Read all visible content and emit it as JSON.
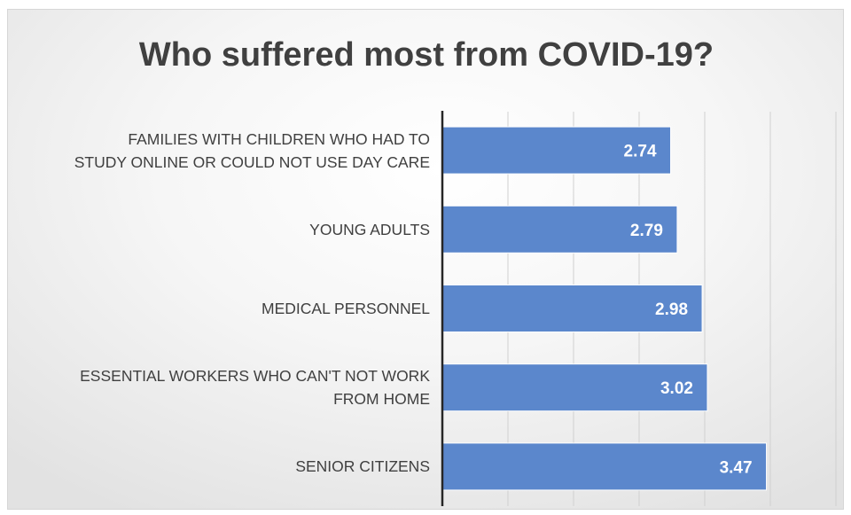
{
  "chart_data": {
    "type": "bar",
    "orientation": "horizontal",
    "title": "Who suffered most from COVID-19?",
    "categories": [
      [
        "FAMILIES WITH CHILDREN WHO HAD TO",
        "STUDY ONLINE OR COULD NOT USE DAY CARE"
      ],
      [
        "YOUNG ADULTS"
      ],
      [
        "MEDICAL PERSONNEL"
      ],
      [
        "ESSENTIAL WORKERS WHO CAN'T NOT WORK",
        "FROM HOME"
      ],
      [
        "SENIOR CITIZENS"
      ]
    ],
    "values": [
      2.74,
      2.79,
      2.98,
      3.02,
      3.47
    ],
    "value_labels": [
      "2.74",
      "2.79",
      "2.98",
      "3.02",
      "3.47"
    ],
    "xlim": [
      1,
      4
    ],
    "tick_step": 0.5,
    "grid": true,
    "bar_color": "#5b87cc",
    "label_color": "#ffffff",
    "text_color": "#404040"
  }
}
